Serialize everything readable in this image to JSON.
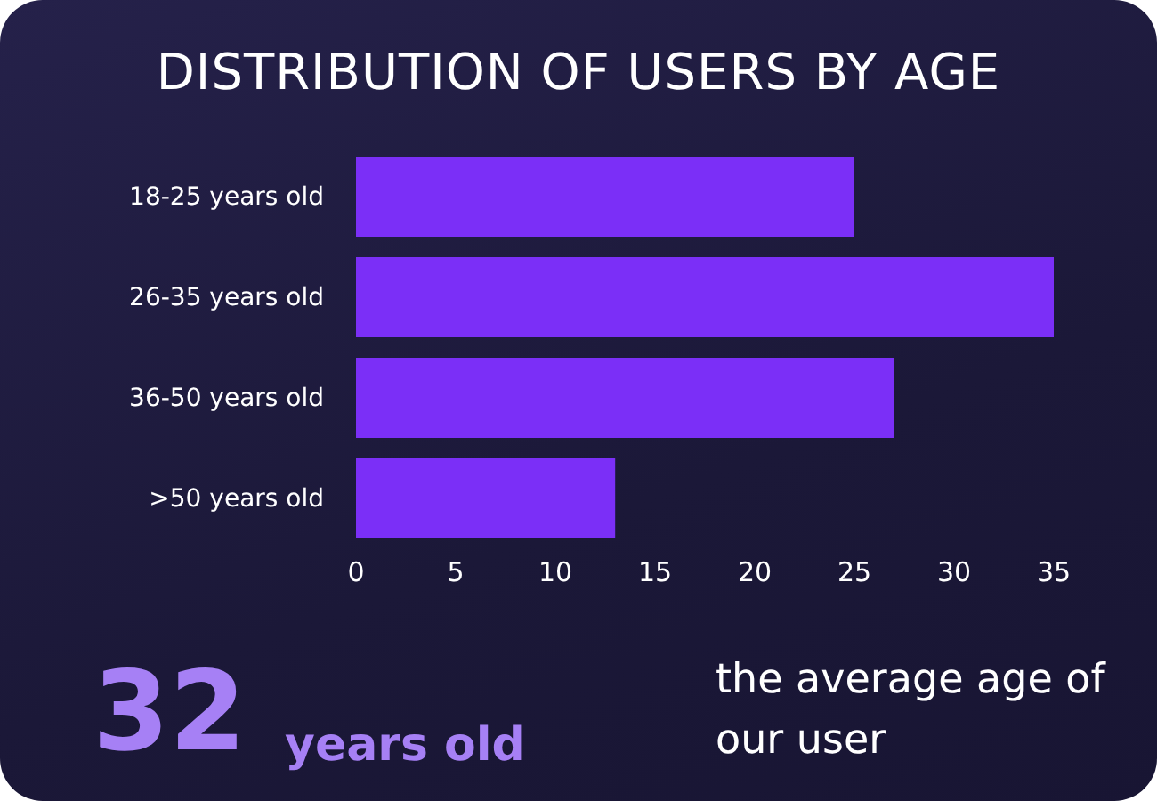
{
  "chart_data": {
    "type": "bar",
    "orientation": "horizontal",
    "title": "DISTRIBUTION OF USERS BY AGE",
    "categories": [
      "18-25 years old",
      "26-35 years old",
      "36-50 years old",
      ">50 years old"
    ],
    "values": [
      25,
      35,
      27,
      13
    ],
    "color": "#7b2ff7",
    "xlim": [
      0,
      35
    ],
    "xticks": [
      0,
      5,
      10,
      15,
      20,
      25,
      30,
      35
    ],
    "grid": false,
    "annotations": [
      "32",
      "years old",
      "the average age of our user"
    ]
  }
}
